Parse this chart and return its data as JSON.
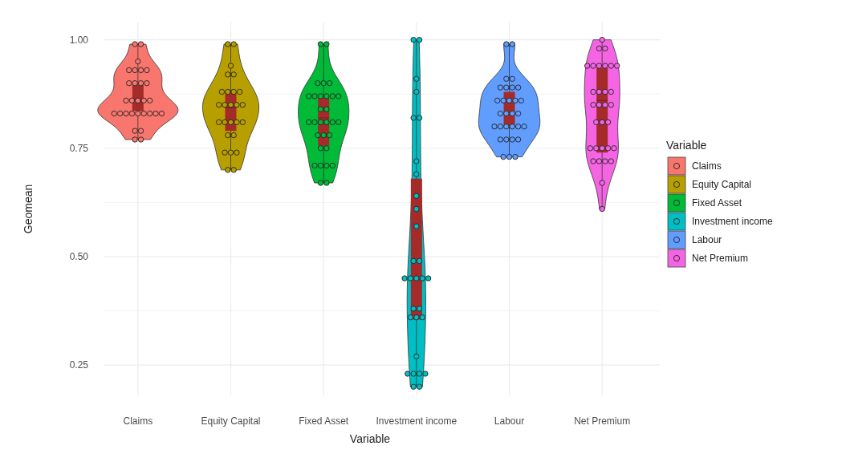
{
  "chart_data": {
    "type": "box",
    "xlabel": "Variable",
    "ylabel": "Geomean",
    "legend_title": "Variable",
    "legend": "right",
    "grid": true,
    "marker": "circle",
    "categories": [
      "Claims",
      "Equity Capital",
      "Fixed Asset",
      "Investment income",
      "Labour",
      "Net Premium"
    ],
    "ylim": [
      0.18,
      1.04
    ],
    "yticks": [
      {
        "value": 0.25,
        "label": "0.25"
      },
      {
        "value": 0.375,
        "label": null
      },
      {
        "value": 0.5,
        "label": "0.50"
      },
      {
        "value": 0.625,
        "label": null
      },
      {
        "value": 0.75,
        "label": "0.75"
      },
      {
        "value": 0.875,
        "label": null
      },
      {
        "value": 1,
        "label": "1.00"
      }
    ],
    "series": [
      {
        "type": "box",
        "color": "#a52a2a",
        "boxes": [
          {
            "low": 0.77,
            "q1": 0.836,
            "median": 0.86,
            "q3": 0.896,
            "high": 0.99
          },
          {
            "low": 0.7,
            "q1": 0.79,
            "median": 0.843,
            "q3": 0.88,
            "high": 0.99
          },
          {
            "low": 0.67,
            "q1": 0.756,
            "median": 0.82,
            "q3": 0.867,
            "high": 0.99
          },
          {
            "low": 0.2,
            "q1": 0.355,
            "median": 0.49,
            "q3": 0.68,
            "high": 1.0
          },
          {
            "low": 0.73,
            "q1": 0.8,
            "median": 0.83,
            "q3": 0.88,
            "high": 0.99
          },
          {
            "low": 0.61,
            "q1": 0.74,
            "median": 0.86,
            "q3": 0.935,
            "high": 1.0
          }
        ]
      },
      {
        "type": "scatter",
        "name": "Claims",
        "color": "#f8766d",
        "x": [
          "Claims",
          "Claims",
          "Claims",
          "Claims",
          "Claims",
          "Claims",
          "Claims",
          "Claims",
          "Claims",
          "Claims",
          "Claims",
          "Claims",
          "Claims",
          "Claims",
          "Claims",
          "Claims",
          "Claims",
          "Claims",
          "Claims",
          "Claims",
          "Claims",
          "Claims",
          "Claims",
          "Claims",
          "Claims",
          "Claims",
          "Claims",
          "Claims",
          "Claims"
        ],
        "values": [
          0.99,
          0.99,
          0.95,
          0.93,
          0.93,
          0.93,
          0.93,
          0.9,
          0.9,
          0.9,
          0.9,
          0.86,
          0.86,
          0.86,
          0.86,
          0.86,
          0.83,
          0.83,
          0.83,
          0.83,
          0.83,
          0.83,
          0.83,
          0.83,
          0.83,
          0.79,
          0.79,
          0.77,
          0.77
        ]
      },
      {
        "type": "scatter",
        "name": "Equity Capital",
        "color": "#b79f00",
        "x": [
          "Equity Capital",
          "Equity Capital",
          "Equity Capital",
          "Equity Capital",
          "Equity Capital",
          "Equity Capital",
          "Equity Capital",
          "Equity Capital",
          "Equity Capital",
          "Equity Capital",
          "Equity Capital",
          "Equity Capital",
          "Equity Capital",
          "Equity Capital",
          "Equity Capital",
          "Equity Capital",
          "Equity Capital",
          "Equity Capital",
          "Equity Capital",
          "Equity Capital",
          "Equity Capital",
          "Equity Capital",
          "Equity Capital",
          "Equity Capital",
          "Equity Capital",
          "Equity Capital"
        ],
        "values": [
          0.99,
          0.99,
          0.94,
          0.92,
          0.92,
          0.88,
          0.88,
          0.88,
          0.88,
          0.85,
          0.85,
          0.85,
          0.85,
          0.85,
          0.81,
          0.81,
          0.81,
          0.81,
          0.81,
          0.78,
          0.78,
          0.74,
          0.74,
          0.74,
          0.7,
          0.7
        ]
      },
      {
        "type": "scatter",
        "name": "Fixed Asset",
        "color": "#00ba38",
        "x": [
          "Fixed Asset",
          "Fixed Asset",
          "Fixed Asset",
          "Fixed Asset",
          "Fixed Asset",
          "Fixed Asset",
          "Fixed Asset",
          "Fixed Asset",
          "Fixed Asset",
          "Fixed Asset",
          "Fixed Asset",
          "Fixed Asset",
          "Fixed Asset",
          "Fixed Asset",
          "Fixed Asset",
          "Fixed Asset",
          "Fixed Asset",
          "Fixed Asset",
          "Fixed Asset",
          "Fixed Asset",
          "Fixed Asset",
          "Fixed Asset",
          "Fixed Asset",
          "Fixed Asset",
          "Fixed Asset",
          "Fixed Asset",
          "Fixed Asset",
          "Fixed Asset",
          "Fixed Asset",
          "Fixed Asset"
        ],
        "values": [
          0.99,
          0.99,
          0.9,
          0.9,
          0.9,
          0.87,
          0.87,
          0.87,
          0.87,
          0.87,
          0.87,
          0.84,
          0.84,
          0.81,
          0.81,
          0.81,
          0.81,
          0.81,
          0.81,
          0.78,
          0.78,
          0.78,
          0.75,
          0.75,
          0.71,
          0.71,
          0.71,
          0.71,
          0.67,
          0.67
        ]
      },
      {
        "type": "scatter",
        "name": "Investment income",
        "color": "#00bfc4",
        "x": [
          "Investment income",
          "Investment income",
          "Investment income",
          "Investment income",
          "Investment income",
          "Investment income",
          "Investment income",
          "Investment income",
          "Investment income",
          "Investment income",
          "Investment income",
          "Investment income",
          "Investment income",
          "Investment income",
          "Investment income",
          "Investment income",
          "Investment income",
          "Investment income",
          "Investment income",
          "Investment income",
          "Investment income",
          "Investment income",
          "Investment income",
          "Investment income",
          "Investment income",
          "Investment income",
          "Investment income",
          "Investment income",
          "Investment income",
          "Investment income"
        ],
        "values": [
          1.0,
          1.0,
          0.91,
          0.88,
          0.82,
          0.82,
          0.72,
          0.69,
          0.64,
          0.61,
          0.57,
          0.49,
          0.49,
          0.45,
          0.45,
          0.45,
          0.45,
          0.45,
          0.38,
          0.38,
          0.36,
          0.36,
          0.36,
          0.27,
          0.23,
          0.23,
          0.23,
          0.23,
          0.2,
          0.2
        ]
      },
      {
        "type": "scatter",
        "name": "Labour",
        "color": "#619cff",
        "x": [
          "Labour",
          "Labour",
          "Labour",
          "Labour",
          "Labour",
          "Labour",
          "Labour",
          "Labour",
          "Labour",
          "Labour",
          "Labour",
          "Labour",
          "Labour",
          "Labour",
          "Labour",
          "Labour",
          "Labour",
          "Labour",
          "Labour",
          "Labour",
          "Labour",
          "Labour",
          "Labour",
          "Labour",
          "Labour",
          "Labour",
          "Labour",
          "Labour",
          "Labour",
          "Labour"
        ],
        "values": [
          0.99,
          0.99,
          0.91,
          0.91,
          0.89,
          0.89,
          0.89,
          0.89,
          0.86,
          0.86,
          0.86,
          0.86,
          0.86,
          0.83,
          0.83,
          0.83,
          0.83,
          0.8,
          0.8,
          0.8,
          0.8,
          0.8,
          0.8,
          0.77,
          0.77,
          0.77,
          0.77,
          0.73,
          0.73,
          0.73
        ]
      },
      {
        "type": "scatter",
        "name": "Net Premium",
        "color": "#f564e3",
        "x": [
          "Net Premium",
          "Net Premium",
          "Net Premium",
          "Net Premium",
          "Net Premium",
          "Net Premium",
          "Net Premium",
          "Net Premium",
          "Net Premium",
          "Net Premium",
          "Net Premium",
          "Net Premium",
          "Net Premium",
          "Net Premium",
          "Net Premium",
          "Net Premium",
          "Net Premium",
          "Net Premium",
          "Net Premium",
          "Net Premium",
          "Net Premium",
          "Net Premium",
          "Net Premium",
          "Net Premium",
          "Net Premium",
          "Net Premium",
          "Net Premium",
          "Net Premium",
          "Net Premium",
          "Net Premium",
          "Net Premium"
        ],
        "values": [
          1.0,
          0.98,
          0.98,
          0.94,
          0.94,
          0.94,
          0.94,
          0.94,
          0.94,
          0.88,
          0.88,
          0.88,
          0.88,
          0.85,
          0.85,
          0.85,
          0.85,
          0.81,
          0.81,
          0.81,
          0.75,
          0.75,
          0.75,
          0.75,
          0.75,
          0.72,
          0.72,
          0.72,
          0.72,
          0.67,
          0.61
        ]
      }
    ]
  }
}
